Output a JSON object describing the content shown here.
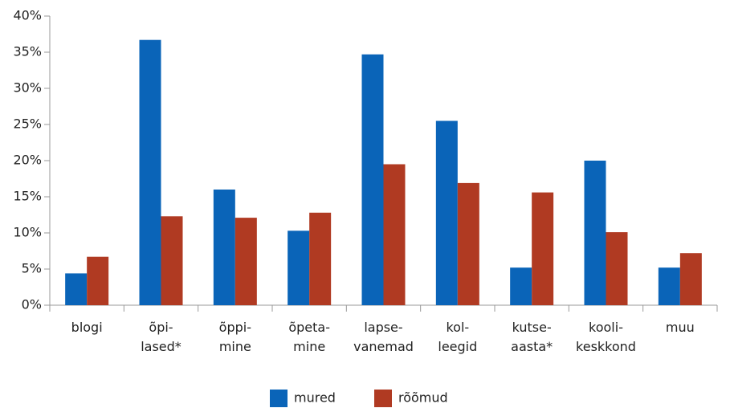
{
  "chart_data": {
    "type": "bar",
    "categories": [
      [
        "blogi"
      ],
      [
        "õpi-",
        "lased*"
      ],
      [
        "õppi-",
        "mine"
      ],
      [
        "õpeta-",
        "mine"
      ],
      [
        "lapse-",
        "vanemad"
      ],
      [
        "kol-",
        "leegid"
      ],
      [
        "kutse-",
        "aasta*"
      ],
      [
        "kooli-",
        "keskkond"
      ],
      [
        "muu"
      ]
    ],
    "series": [
      {
        "name": "mured",
        "color": "#0a64b8",
        "values": [
          4.4,
          36.7,
          16,
          10.3,
          34.7,
          25.5,
          5.2,
          20,
          5.2
        ]
      },
      {
        "name": "rõõmud",
        "color": "#b03a22",
        "values": [
          6.7,
          12.3,
          12.1,
          12.8,
          19.5,
          16.9,
          15.6,
          10.1,
          7.2
        ]
      }
    ],
    "ylim": [
      0,
      40
    ],
    "yticks": [
      {
        "value": 0,
        "label": "0%"
      },
      {
        "value": 5,
        "label": "5%"
      },
      {
        "value": 10,
        "label": "10%"
      },
      {
        "value": 15,
        "label": "15%"
      },
      {
        "value": 20,
        "label": "20%"
      },
      {
        "value": 25,
        "label": "25%"
      },
      {
        "value": 30,
        "label": "30%"
      },
      {
        "value": 35,
        "label": "35%"
      },
      {
        "value": 40,
        "label": "40%"
      }
    ],
    "legend": "bottom"
  }
}
